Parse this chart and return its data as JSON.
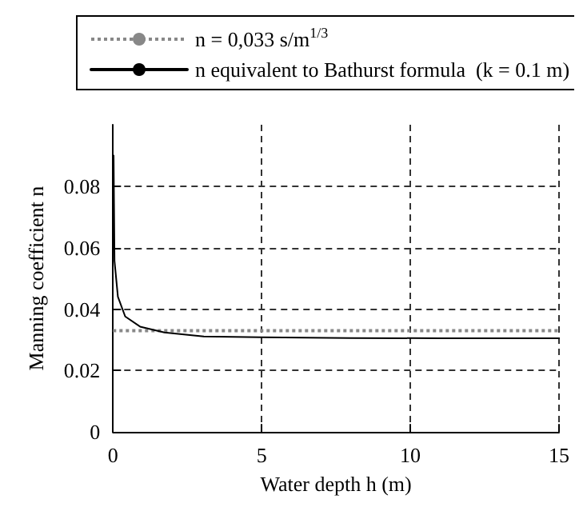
{
  "chart_data": {
    "type": "line",
    "xlabel": "Water depth h (m)",
    "ylabel": "Manning coefficient n",
    "x": [
      0.02,
      0.05,
      0.165,
      0.41,
      0.91,
      1.73,
      3.05,
      5,
      8,
      11,
      15
    ],
    "series": [
      {
        "name": "n equivalent to Bathurst formula  (k = 0.1 m)",
        "color": "#000000",
        "values": [
          0.09,
          0.0557,
          0.044,
          0.0376,
          0.0343,
          0.0324,
          0.0311,
          0.0308,
          0.0306,
          0.0305,
          0.0305
        ]
      }
    ],
    "ref_lines": [
      {
        "axis": "y",
        "value": 0.033,
        "label": "n = 0,033 s/m$^{1/3}$",
        "color": "#888888",
        "line_style": "dotted"
      }
    ],
    "xlim": [
      0,
      15
    ],
    "xticks": [
      0,
      5,
      10,
      15
    ],
    "ylim": [
      0,
      0.1
    ],
    "yticks": [
      0,
      0.02,
      0.04,
      0.06,
      0.08
    ],
    "grid": true,
    "legend": "top",
    "marker": "none",
    "line_style": "solid"
  }
}
